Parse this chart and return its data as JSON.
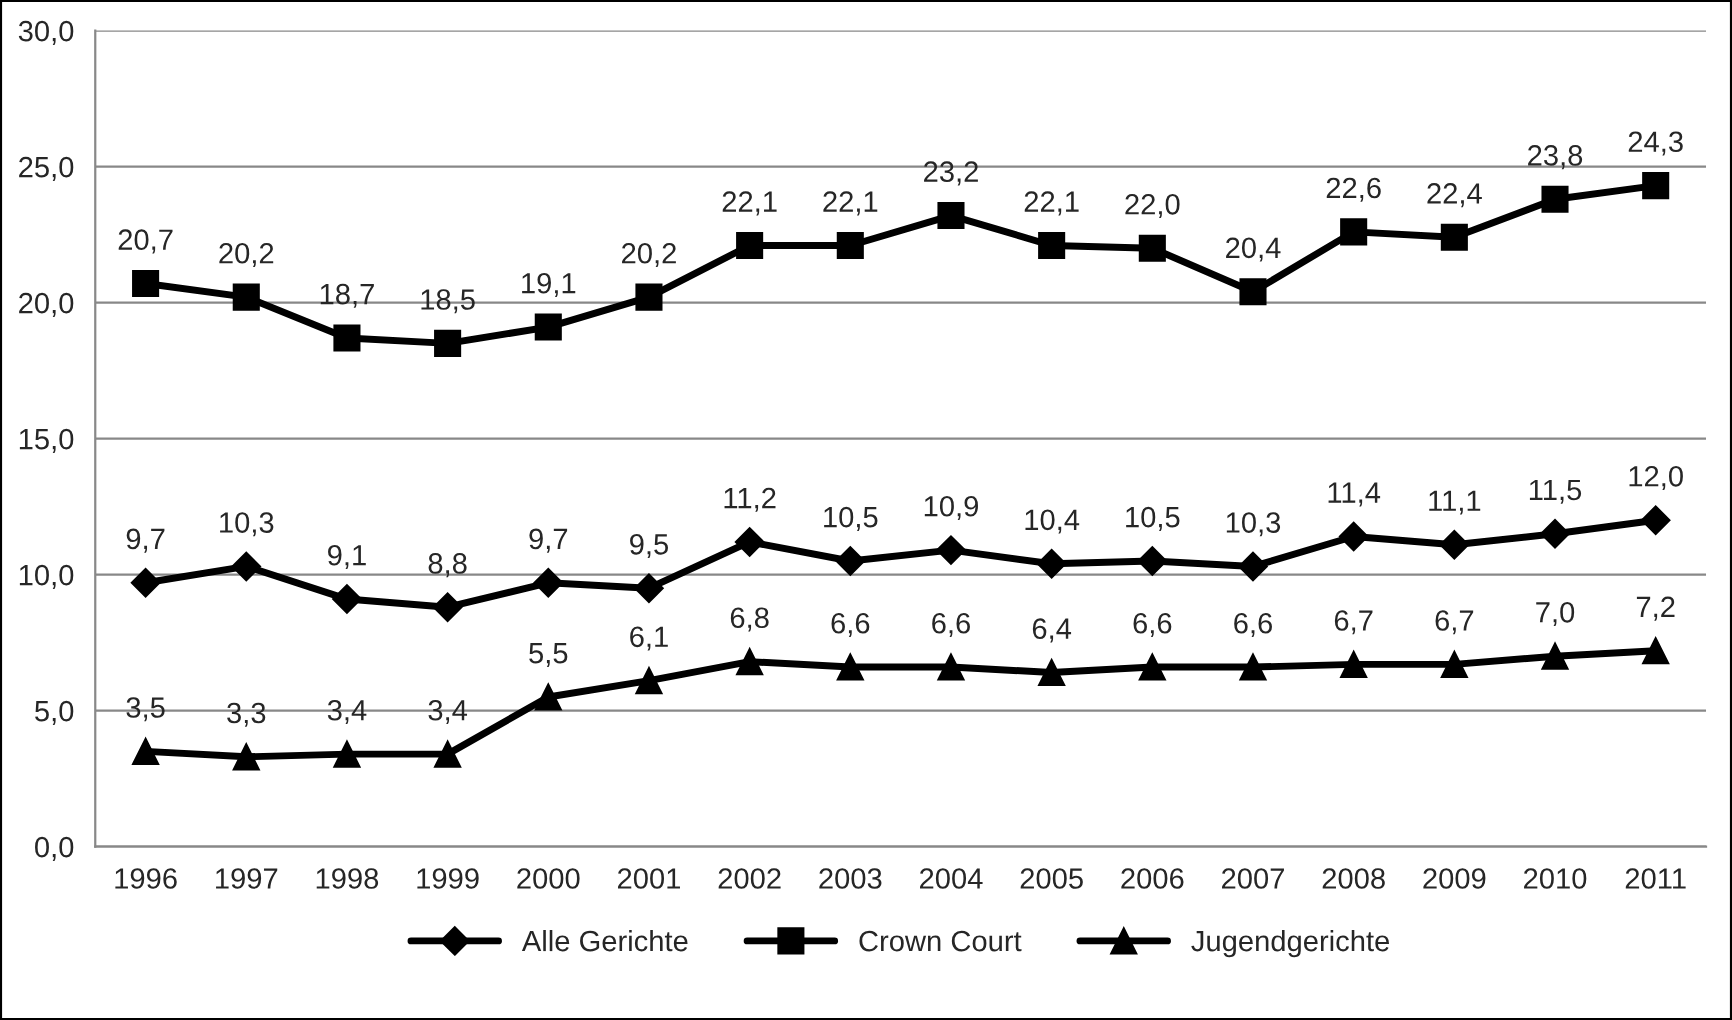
{
  "chart_data": {
    "type": "line",
    "categories": [
      "1996",
      "1997",
      "1998",
      "1999",
      "2000",
      "2001",
      "2002",
      "2003",
      "2004",
      "2005",
      "2006",
      "2007",
      "2008",
      "2009",
      "2010",
      "2011"
    ],
    "series": [
      {
        "name": "Alle Gerichte",
        "color": "#000000",
        "marker": "diamond",
        "values": [
          9.7,
          10.3,
          9.1,
          8.8,
          9.7,
          9.5,
          11.2,
          10.5,
          10.9,
          10.4,
          10.5,
          10.3,
          11.4,
          11.1,
          11.5,
          12.0
        ],
        "value_labels": [
          "9,7",
          "10,3",
          "9,1",
          "8,8",
          "9,7",
          "9,5",
          "11,2",
          "10,5",
          "10,9",
          "10,4",
          "10,5",
          "10,3",
          "11,4",
          "11,1",
          "11,5",
          "12,0"
        ]
      },
      {
        "name": "Crown Court",
        "color": "#000000",
        "marker": "square",
        "values": [
          20.7,
          20.2,
          18.7,
          18.5,
          19.1,
          20.2,
          22.1,
          22.1,
          23.2,
          22.1,
          22.0,
          20.4,
          22.6,
          22.4,
          23.8,
          24.3
        ],
        "value_labels": [
          "20,7",
          "20,2",
          "18,7",
          "18,5",
          "19,1",
          "20,2",
          "22,1",
          "22,1",
          "23,2",
          "22,1",
          "22,0",
          "20,4",
          "22,6",
          "22,4",
          "23,8",
          "24,3"
        ]
      },
      {
        "name": "Jugendgerichte",
        "color": "#000000",
        "marker": "triangle",
        "values": [
          3.5,
          3.3,
          3.4,
          3.4,
          5.5,
          6.1,
          6.8,
          6.6,
          6.6,
          6.4,
          6.6,
          6.6,
          6.7,
          6.7,
          7.0,
          7.2
        ],
        "value_labels": [
          "3,5",
          "3,3",
          "3,4",
          "3,4",
          "5,5",
          "6,1",
          "6,8",
          "6,6",
          "6,6",
          "6,4",
          "6,6",
          "6,6",
          "6,7",
          "6,7",
          "7,0",
          "7,2"
        ]
      }
    ],
    "ylim": [
      0,
      30
    ],
    "yticks": [
      {
        "value": 0,
        "label": "0,0"
      },
      {
        "value": 5,
        "label": "5,0"
      },
      {
        "value": 10,
        "label": "10,0"
      },
      {
        "value": 15,
        "label": "15,0"
      },
      {
        "value": 20,
        "label": "20,0"
      },
      {
        "value": 25,
        "label": "25,0"
      },
      {
        "value": 30,
        "label": "30,0"
      }
    ],
    "grid": "y",
    "legend": "bottom",
    "line_style": "solid"
  }
}
